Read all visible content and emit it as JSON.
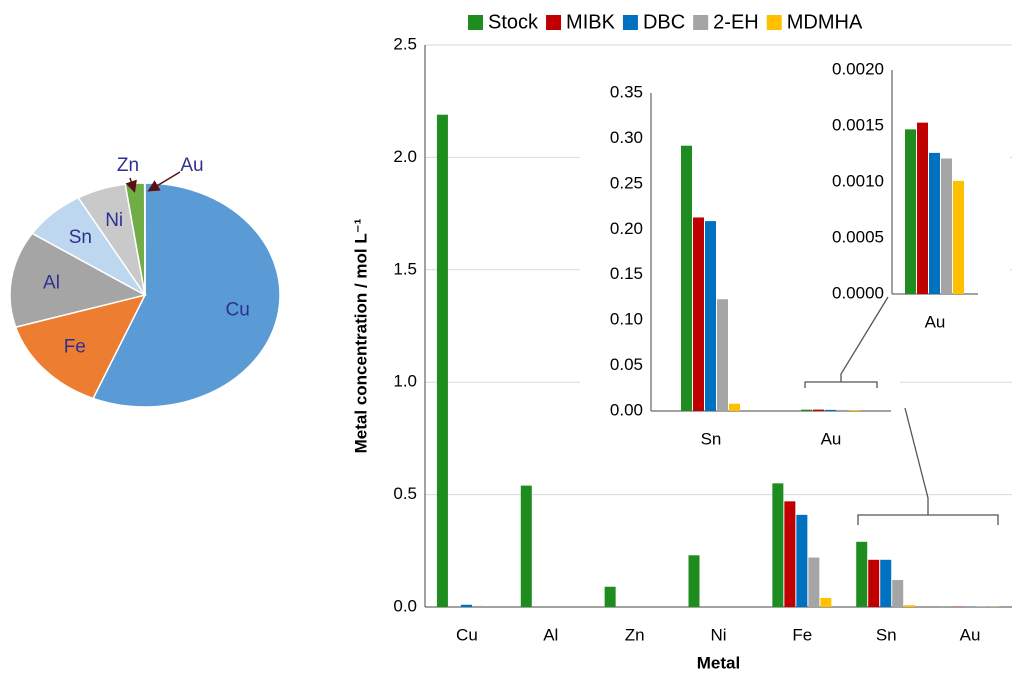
{
  "chart_data": [
    {
      "type": "pie",
      "categories": [
        "Cu",
        "Fe",
        "Al",
        "Sn",
        "Ni",
        "Zn",
        "Au"
      ],
      "values": [
        56.3,
        14.1,
        13.9,
        7.5,
        5.9,
        2.3,
        0.04
      ],
      "colors": [
        "#5b9bd5",
        "#ed7d31",
        "#a5a5a5",
        "#bdd7ee",
        "#c9c9c9",
        "#70ad47",
        "#ffc000"
      ]
    },
    {
      "type": "bar",
      "xlabel": "Metal",
      "ylabel": "Metal concentration / mol L⁻¹",
      "categories": [
        "Cu",
        "Al",
        "Zn",
        "Ni",
        "Fe",
        "Sn",
        "Au"
      ],
      "series": [
        {
          "name": "Stock",
          "color": "#1e8c1e",
          "values": [
            2.19,
            0.54,
            0.09,
            0.23,
            0.55,
            0.29,
            0.0015
          ]
        },
        {
          "name": "MIBK",
          "color": "#c00000",
          "values": [
            0,
            0,
            0,
            0,
            0.47,
            0.21,
            0.0015
          ]
        },
        {
          "name": "DBC",
          "color": "#0070c0",
          "values": [
            0.01,
            0,
            0,
            0,
            0.41,
            0.21,
            0.0013
          ]
        },
        {
          "name": "2-EH",
          "color": "#a5a5a5",
          "values": [
            0.005,
            0,
            0,
            0,
            0.22,
            0.12,
            0.0012
          ]
        },
        {
          "name": "MDMHA",
          "color": "#ffc000",
          "values": [
            0,
            0,
            0,
            0,
            0.04,
            0.008,
            0.001
          ]
        }
      ],
      "ylim": [
        0,
        2.5
      ],
      "yticks": [
        {
          "value": 0,
          "label": "0.0"
        },
        {
          "value": 0.5,
          "label": "0.5"
        },
        {
          "value": 1,
          "label": "1.0"
        },
        {
          "value": 1.5,
          "label": "1.5"
        },
        {
          "value": 2,
          "label": "2.0"
        },
        {
          "value": 2.5,
          "label": "2.5"
        }
      ],
      "grid": true,
      "legend": "top"
    },
    {
      "type": "bar",
      "categories": [
        "Sn",
        "Au"
      ],
      "series": [
        {
          "color": "#1e8c1e",
          "values": [
            0.292,
            0.00147
          ]
        },
        {
          "color": "#c00000",
          "values": [
            0.213,
            0.00153
          ]
        },
        {
          "color": "#0070c0",
          "values": [
            0.209,
            0.00126
          ]
        },
        {
          "color": "#a5a5a5",
          "values": [
            0.123,
            0.00121
          ]
        },
        {
          "color": "#ffc000",
          "values": [
            0.008,
            0.00101
          ]
        }
      ],
      "ylim": [
        0,
        0.35
      ],
      "yticks": [
        {
          "value": 0,
          "label": "0.00"
        },
        {
          "value": 0.05,
          "label": "0.05"
        },
        {
          "value": 0.1,
          "label": "0.10"
        },
        {
          "value": 0.15,
          "label": "0.15"
        },
        {
          "value": 0.2,
          "label": "0.20"
        },
        {
          "value": 0.25,
          "label": "0.25"
        },
        {
          "value": 0.3,
          "label": "0.30"
        },
        {
          "value": 0.35,
          "label": "0.35"
        }
      ],
      "grid": false
    },
    {
      "type": "bar",
      "categories": [
        "Au"
      ],
      "series": [
        {
          "color": "#1e8c1e",
          "values": [
            0.00147
          ]
        },
        {
          "color": "#c00000",
          "values": [
            0.00153
          ]
        },
        {
          "color": "#0070c0",
          "values": [
            0.00126
          ]
        },
        {
          "color": "#a5a5a5",
          "values": [
            0.00121
          ]
        },
        {
          "color": "#ffc000",
          "values": [
            0.00101
          ]
        }
      ],
      "ylim": [
        0,
        0.002
      ],
      "yticks": [
        {
          "value": 0,
          "label": "0.0000"
        },
        {
          "value": 0.0005,
          "label": "0.0005"
        },
        {
          "value": 0.001,
          "label": "0.0010"
        },
        {
          "value": 0.0015,
          "label": "0.0015"
        },
        {
          "value": 0.002,
          "label": "0.0020"
        }
      ],
      "grid": false
    }
  ]
}
